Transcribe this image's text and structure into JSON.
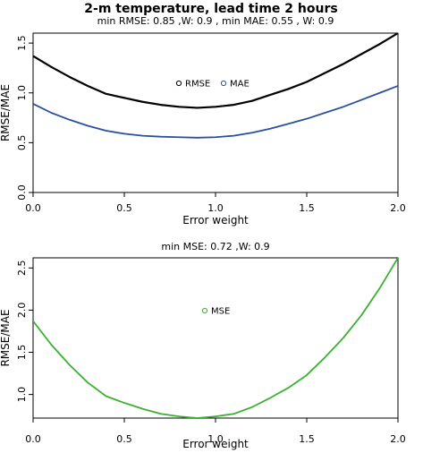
{
  "title": "2-m temperature, lead time 2 hours",
  "chart_data": [
    {
      "type": "line",
      "subtitle": "min RMSE: 0.85 ,W: 0.9 , min MAE: 0.55 , W: 0.9",
      "xlabel": "Error weight",
      "ylabel": "RMSE/MAE",
      "xlim": [
        0,
        2
      ],
      "ylim": [
        0,
        1.6
      ],
      "xticks": [
        0,
        0.5,
        1,
        1.5,
        2
      ],
      "xtick_labels": [
        "0.0",
        "0.5",
        "1.0",
        "1.5",
        "2.0"
      ],
      "yticks": [
        0,
        0.5,
        1,
        1.5
      ],
      "ytick_labels": [
        "0.0",
        "0.5",
        "1.0",
        "1.5"
      ],
      "grid": false,
      "legend_position": "center",
      "x": [
        0.0,
        0.1,
        0.2,
        0.3,
        0.4,
        0.5,
        0.6,
        0.7,
        0.8,
        0.9,
        1.0,
        1.1,
        1.2,
        1.3,
        1.4,
        1.5,
        1.6,
        1.7,
        1.8,
        1.9,
        2.0
      ],
      "series": [
        {
          "name": "RMSE",
          "color": "#000000",
          "marker": "open-circle",
          "values": [
            1.37,
            1.26,
            1.16,
            1.07,
            0.99,
            0.95,
            0.91,
            0.88,
            0.86,
            0.85,
            0.86,
            0.88,
            0.92,
            0.98,
            1.04,
            1.11,
            1.2,
            1.29,
            1.39,
            1.49,
            1.6
          ]
        },
        {
          "name": "MAE",
          "color": "#2b4fa0",
          "marker": "open-circle",
          "values": [
            0.89,
            0.8,
            0.73,
            0.67,
            0.62,
            0.59,
            0.57,
            0.56,
            0.555,
            0.55,
            0.555,
            0.57,
            0.6,
            0.64,
            0.69,
            0.74,
            0.8,
            0.86,
            0.93,
            1.0,
            1.07
          ]
        }
      ]
    },
    {
      "type": "line",
      "subtitle": "min MSE: 0.72 ,W: 0.9",
      "xlabel": "Error weight",
      "ylabel": "RMSE/MAE",
      "xlim": [
        0,
        2
      ],
      "ylim": [
        0.72,
        2.62
      ],
      "xticks": [
        0,
        0.5,
        1,
        1.5,
        2
      ],
      "xtick_labels": [
        "0.0",
        "0.5",
        "1.0",
        "1.5",
        "2.0"
      ],
      "yticks": [
        1.0,
        1.5,
        2.0,
        2.5
      ],
      "ytick_labels": [
        "1.0",
        "1.5",
        "2.0",
        "2.5"
      ],
      "grid": false,
      "legend_position": "center",
      "x": [
        0.0,
        0.1,
        0.2,
        0.3,
        0.4,
        0.5,
        0.6,
        0.7,
        0.8,
        0.9,
        1.0,
        1.1,
        1.2,
        1.3,
        1.4,
        1.5,
        1.6,
        1.7,
        1.8,
        1.9,
        2.0
      ],
      "series": [
        {
          "name": "MSE",
          "color": "#3cb032",
          "marker": "open-circle",
          "values": [
            1.87,
            1.59,
            1.35,
            1.14,
            0.98,
            0.9,
            0.83,
            0.77,
            0.74,
            0.72,
            0.74,
            0.77,
            0.85,
            0.96,
            1.08,
            1.23,
            1.44,
            1.67,
            1.94,
            2.26,
            2.62
          ]
        }
      ]
    }
  ]
}
